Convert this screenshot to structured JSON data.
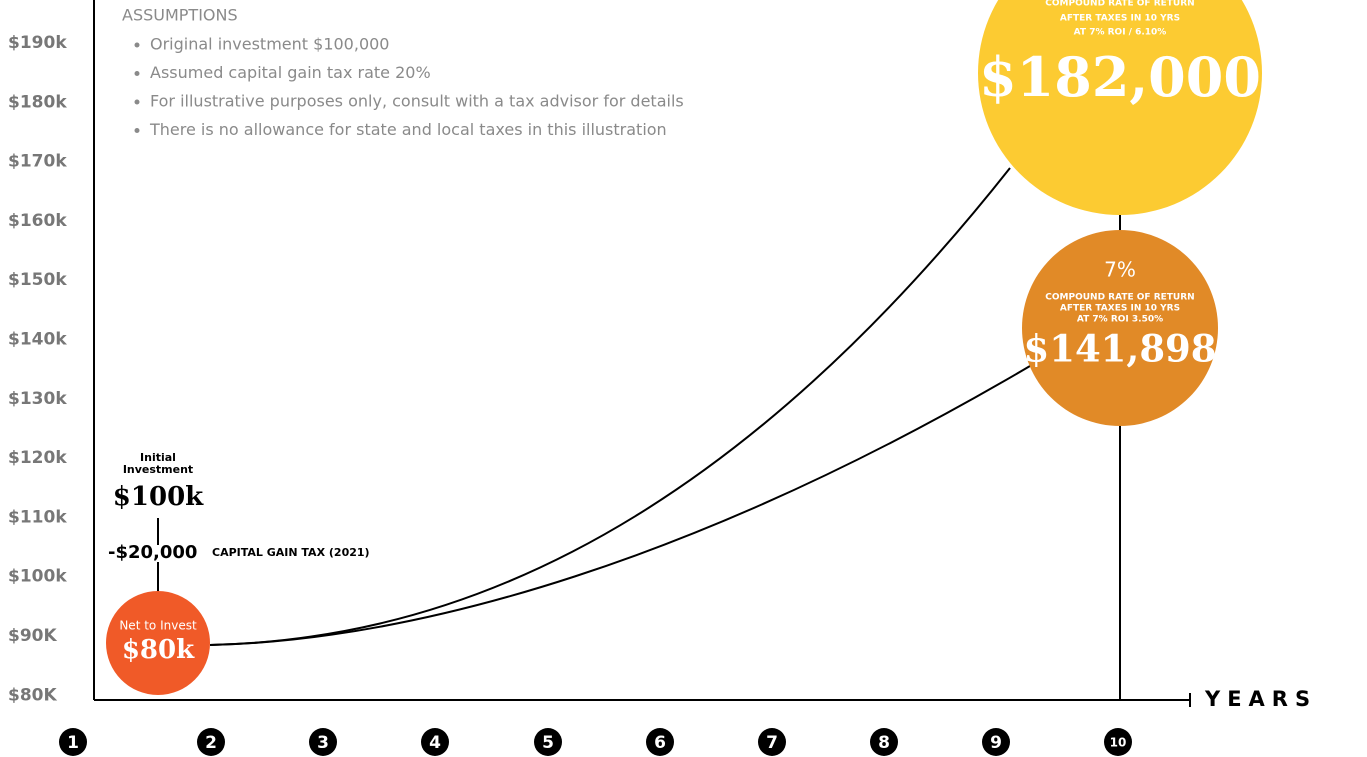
{
  "y_axis": {
    "labels": [
      "$190k",
      "$180k",
      "$170k",
      "$160k",
      "$150k",
      "$140k",
      "$130k",
      "$120k",
      "$110k",
      "$100k",
      "$90K",
      "$80K"
    ]
  },
  "x_axis": {
    "label": "YEARS",
    "years": [
      "1",
      "2",
      "3",
      "4",
      "5",
      "6",
      "7",
      "8",
      "9",
      "10"
    ]
  },
  "assumptions": {
    "title": "ASSUMPTIONS",
    "items": [
      "Original investment $100,000",
      "Assumed capital gain tax rate 20%",
      "For illustrative purposes only, consult with a tax advisor for details",
      "There is no allowance for state and local taxes in this illustration"
    ]
  },
  "high_bubble": {
    "lines": [
      "COMPOUND RATE OF RETURN",
      "AFTER TAXES IN 10 YRS",
      "AT 7% ROI / 6.10%"
    ],
    "amount": "$182,000"
  },
  "low_bubble": {
    "rate": "7%",
    "lines": [
      "COMPOUND RATE OF RETURN",
      "AFTER TAXES IN 10 YRS",
      "AT 7% ROI 3.50%"
    ],
    "amount": "$141,898"
  },
  "initial": {
    "label_lines": [
      "Initial",
      "Investment"
    ],
    "amount": "$100k",
    "tax": "-$20,000",
    "tax_label": "CAPITAL GAIN TAX (2021)"
  },
  "net": {
    "label": "Net to Invest",
    "amount": "$80k"
  }
}
